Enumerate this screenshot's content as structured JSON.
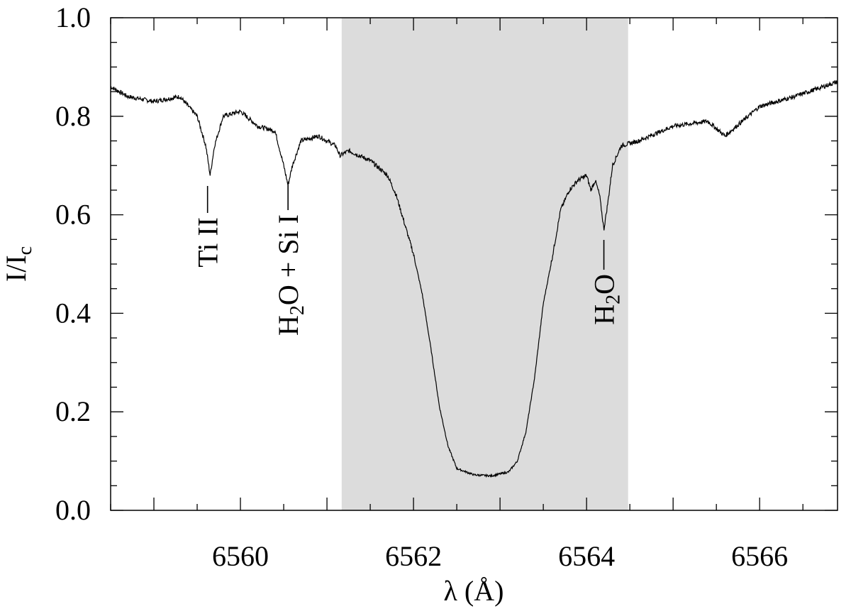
{
  "chart_data": {
    "type": "line",
    "xlabel": "λ (Å)",
    "ylabel": "I/I_c",
    "xlim": [
      6558.5,
      6566.9
    ],
    "ylim": [
      0.0,
      1.0
    ],
    "x_ticks": [
      6560,
      6562,
      6564,
      6566
    ],
    "y_ticks": [
      0.0,
      0.2,
      0.4,
      0.6,
      0.8,
      1.0
    ],
    "y_tick_labels": [
      "0.0",
      "0.2",
      "0.4",
      "0.6",
      "0.8",
      "1.0"
    ],
    "grid": false,
    "shaded_band": {
      "x_start": 6561.17,
      "x_end": 6564.48,
      "color": "#dcdcdc"
    },
    "line_color": "#000000",
    "series": [
      {
        "x": [
          6558.5,
          6558.7,
          6559.0,
          6559.3,
          6559.5,
          6559.6,
          6559.65,
          6559.7,
          6559.8,
          6560.0,
          6560.2,
          6560.4,
          6560.5,
          6560.55,
          6560.6,
          6560.7,
          6560.9,
          6561.1,
          6561.15,
          6561.25,
          6561.5,
          6561.7,
          6561.8,
          6561.9,
          6562.0,
          6562.1,
          6562.2,
          6562.3,
          6562.4,
          6562.5,
          6562.7,
          6562.9,
          6563.1,
          6563.2,
          6563.3,
          6563.4,
          6563.5,
          6563.6,
          6563.7,
          6563.8,
          6563.9,
          6564.0,
          6564.05,
          6564.1,
          6564.15,
          6564.2,
          6564.25,
          6564.3,
          6564.4,
          6564.6,
          6565.0,
          6565.4,
          6565.6,
          6566.0,
          6566.4,
          6566.9
        ],
        "y": [
          0.86,
          0.84,
          0.83,
          0.84,
          0.8,
          0.74,
          0.68,
          0.74,
          0.8,
          0.81,
          0.78,
          0.77,
          0.7,
          0.66,
          0.7,
          0.75,
          0.76,
          0.74,
          0.72,
          0.73,
          0.71,
          0.68,
          0.64,
          0.58,
          0.52,
          0.44,
          0.33,
          0.21,
          0.13,
          0.085,
          0.072,
          0.07,
          0.078,
          0.1,
          0.16,
          0.27,
          0.42,
          0.51,
          0.61,
          0.65,
          0.67,
          0.68,
          0.65,
          0.67,
          0.64,
          0.57,
          0.63,
          0.7,
          0.74,
          0.75,
          0.78,
          0.79,
          0.76,
          0.82,
          0.84,
          0.87
        ]
      }
    ],
    "annotations": [
      {
        "text": "Ti II",
        "x": 6559.62,
        "y": 0.66
      },
      {
        "text": "H2O + Si I",
        "x": 6560.55,
        "y": 0.64
      },
      {
        "text": "H2O",
        "x": 6564.2,
        "y": 0.56
      }
    ]
  }
}
